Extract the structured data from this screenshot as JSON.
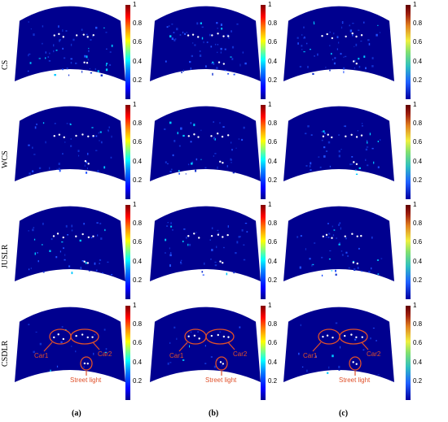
{
  "rows": [
    {
      "label": "CS"
    },
    {
      "label": "WCS"
    },
    {
      "label": "JUSLR"
    },
    {
      "label": "CSDLR"
    }
  ],
  "columns": [
    {
      "label": "(a)"
    },
    {
      "label": "(b)"
    },
    {
      "label": "(c)"
    }
  ],
  "colorbar": {
    "ticks": [
      "1",
      "0.8",
      "0.6",
      "0.4",
      "0.2"
    ],
    "ticks_c": [
      "1",
      "0.8",
      "0.6",
      "0.4",
      "0.2"
    ]
  },
  "annotations": {
    "car1": "Car1",
    "car2": "Car2",
    "street_light": "Street light"
  },
  "colors": {
    "background_field": "#00008f",
    "annotation": "#e0502a"
  }
}
